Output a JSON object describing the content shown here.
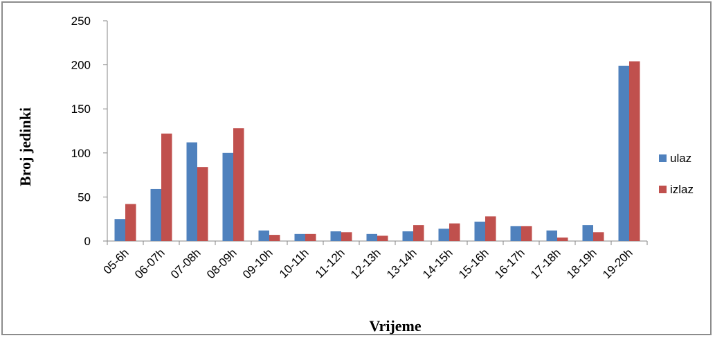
{
  "chart_data": {
    "type": "bar",
    "title": "",
    "xlabel": "Vrijeme",
    "ylabel": "Broj jedinki",
    "ylim": [
      0,
      250
    ],
    "yticks": [
      0,
      50,
      100,
      150,
      200,
      250
    ],
    "grid": false,
    "legend_position": "right",
    "categories": [
      "05-6h",
      "06-07h",
      "07-08h",
      "08-09h",
      "09-10h",
      "10-11h",
      "11-12h",
      "12-13h",
      "13-14h",
      "14-15h",
      "15-16h",
      "16-17h",
      "17-18h",
      "18-19h",
      "19-20h"
    ],
    "series": [
      {
        "name": "ulaz",
        "color": "#4f81bd",
        "values": [
          25,
          59,
          112,
          100,
          12,
          8,
          11,
          8,
          11,
          14,
          22,
          17,
          12,
          18,
          199
        ]
      },
      {
        "name": "izlaz",
        "color": "#c0504d",
        "values": [
          42,
          122,
          84,
          128,
          7,
          8,
          10,
          6,
          18,
          20,
          28,
          17,
          4,
          10,
          204
        ]
      }
    ]
  }
}
